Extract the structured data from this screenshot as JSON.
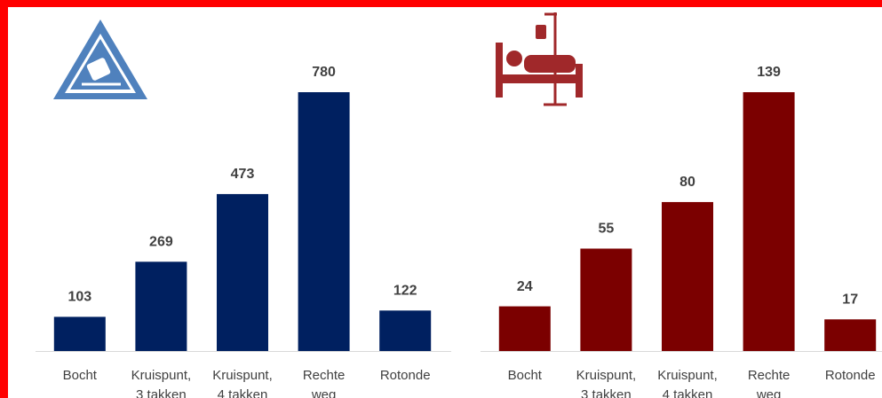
{
  "chart_data": [
    {
      "type": "bar",
      "categories": [
        "Bocht",
        "Kruispunt, 3 takken",
        "Kruispunt, 4 takken",
        "Rechte weg",
        "Rotonde"
      ],
      "values": [
        103,
        269,
        473,
        780,
        122
      ],
      "color": "#002060"
    },
    {
      "type": "bar",
      "categories": [
        "Bocht",
        "Kruispunt, 3 takken",
        "Kruispunt, 4 takken",
        "Rechte weg",
        "Rotonde"
      ],
      "values": [
        24,
        55,
        80,
        139,
        17
      ],
      "color": "#7b0000"
    }
  ]
}
